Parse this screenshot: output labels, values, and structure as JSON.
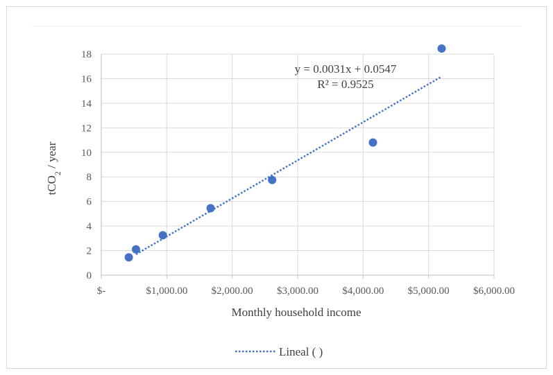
{
  "chart_data": {
    "type": "scatter",
    "x": [
      420,
      530,
      940,
      1670,
      2610,
      4150,
      5200
    ],
    "y": [
      1.45,
      2.1,
      3.25,
      5.45,
      7.75,
      10.8,
      18.45
    ],
    "xlabel": "Monthly household income",
    "ylabel": {
      "base": "tCO",
      "sub": "2",
      "rest": " / year"
    },
    "xlim": [
      0,
      6000
    ],
    "ylim": [
      0,
      18
    ],
    "x_ticks": [
      0,
      1000,
      2000,
      3000,
      4000,
      5000,
      6000
    ],
    "x_tick_labels": [
      "$-",
      "$1,000.00",
      "$2,000.00",
      "$3,000.00",
      "$4,000.00",
      "$5,000.00",
      "$6,000.00"
    ],
    "y_ticks": [
      0,
      2,
      4,
      6,
      8,
      10,
      12,
      14,
      16,
      18
    ],
    "y_tick_labels": [
      "0",
      "2",
      "4",
      "6",
      "8",
      "10",
      "12",
      "14",
      "16",
      "18"
    ],
    "trendline": {
      "slope": 0.0031,
      "intercept": 0.0547,
      "x_range": [
        530,
        5200
      ],
      "equation": "y = 0.0031x + 0.0547",
      "r_squared": "R² = 0.9525"
    },
    "grid": true,
    "legend": {
      "position": "bottom",
      "label": "Lineal ( )"
    },
    "colors": {
      "points": "#4472c4",
      "trendline": "#4472c4",
      "grid": "#d9d9d9",
      "text": "#595959"
    }
  }
}
